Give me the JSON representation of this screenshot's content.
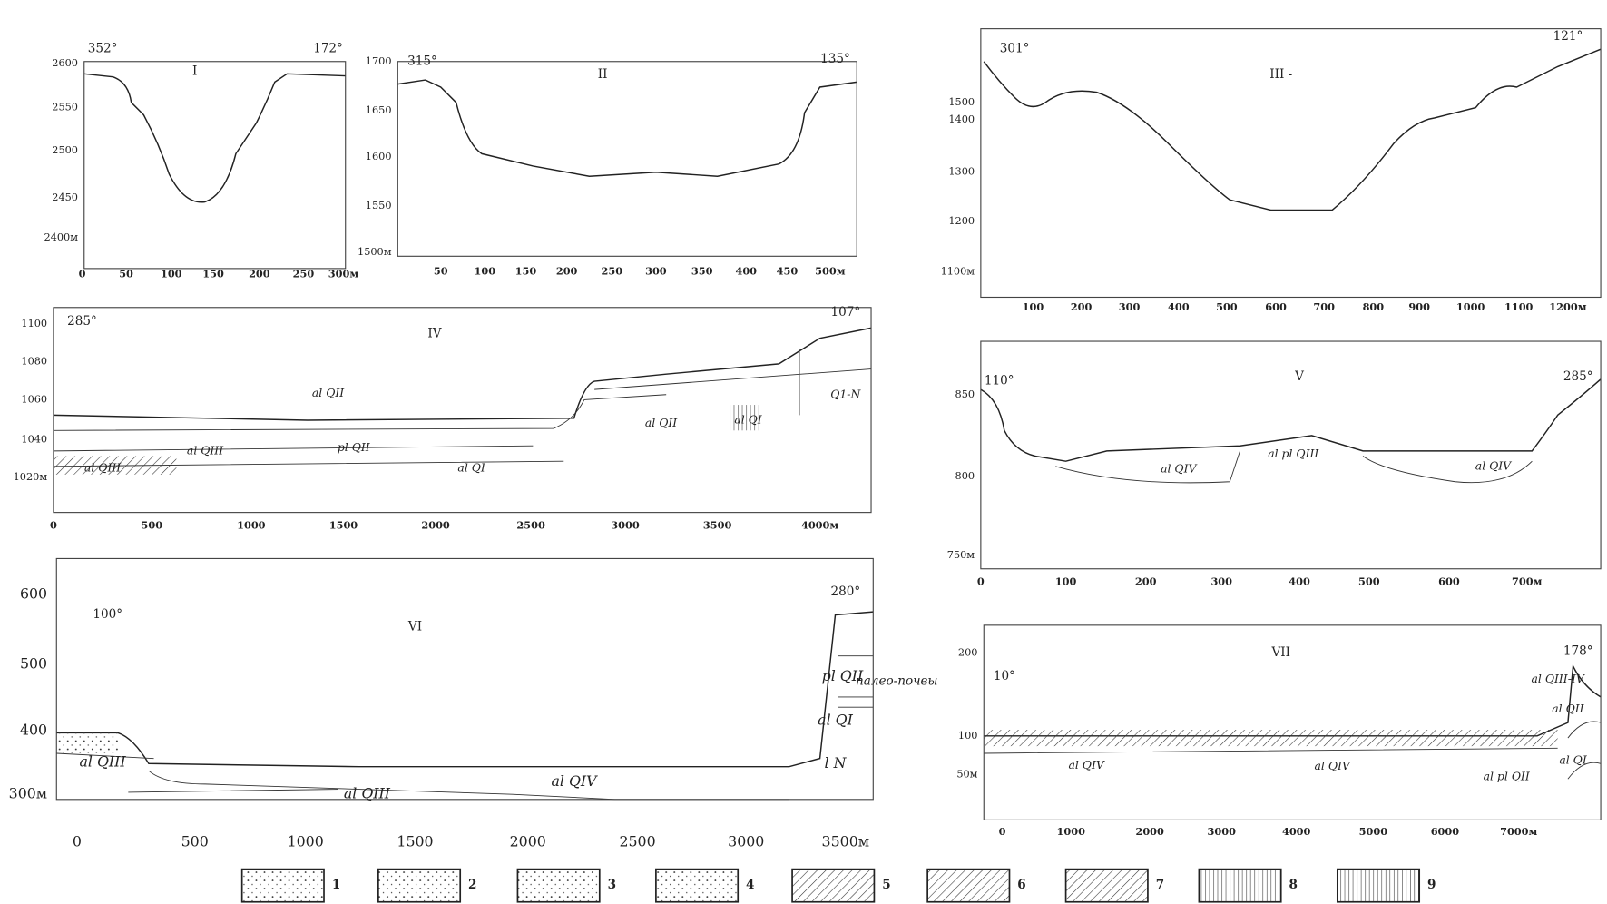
{
  "panels": [
    {
      "label": "I",
      "azimuth_left": "352°",
      "azimuth_right": "172°",
      "yticks": [
        "2600",
        "2550",
        "2500",
        "2450",
        "2400м"
      ],
      "xticks": [
        "0",
        "50",
        "100",
        "150",
        "200",
        "250",
        "300м"
      ],
      "units": []
    },
    {
      "label": "II",
      "azimuth_left": "315°",
      "azimuth_right": "135°",
      "yticks": [
        "1700",
        "1650",
        "1600",
        "1550",
        "1500м"
      ],
      "xticks": [
        "50",
        "100",
        "150",
        "200",
        "250",
        "300",
        "350",
        "400",
        "450",
        "500м"
      ],
      "units": []
    },
    {
      "label": "III -",
      "azimuth_left": "301°",
      "azimuth_right": "121°",
      "yticks": [
        "1500",
        "1400",
        "1300",
        "1200",
        "1100м"
      ],
      "xticks": [
        "100",
        "200",
        "300",
        "400",
        "500",
        "600",
        "700",
        "800",
        "900",
        "1000",
        "1100",
        "1200м"
      ],
      "units": []
    },
    {
      "label": "IV",
      "azimuth_left": "285°",
      "azimuth_right": "107°",
      "yticks": [
        "1100",
        "1080",
        "1060",
        "1040",
        "1020м"
      ],
      "xticks": [
        "0",
        "500",
        "1000",
        "1500",
        "2000",
        "2500",
        "3000",
        "3500",
        "4000м"
      ],
      "units": [
        "al QII",
        "al QII",
        "al QIII",
        "al QIII",
        "pl QII",
        "al QI",
        "al QI",
        "Q1-N"
      ]
    },
    {
      "label": "V",
      "azimuth_left": "110°",
      "azimuth_right": "285°",
      "yticks": [
        "850",
        "800",
        "750м"
      ],
      "xticks": [
        "0",
        "100",
        "200",
        "300",
        "400",
        "500",
        "600",
        "700м"
      ],
      "units": [
        "al QIV",
        "al pl QIII",
        "al QIV"
      ]
    },
    {
      "label": "VI",
      "azimuth_left": "100°",
      "azimuth_right": "280°",
      "yticks": [
        "600",
        "500",
        "400",
        "300м"
      ],
      "xticks": [
        "0",
        "500",
        "1000",
        "1500",
        "2000",
        "2500",
        "3000",
        "3500м"
      ],
      "units": [
        "pl QII",
        "al QI",
        "al QIII",
        "al QIII",
        "al QIV",
        "l N"
      ],
      "note": "палео-почвы"
    },
    {
      "label": "VII",
      "azimuth_left": "10°",
      "azimuth_right": "178°",
      "yticks": [
        "200",
        "100",
        "50м"
      ],
      "xticks": [
        "0",
        "1000",
        "2000",
        "3000",
        "4000",
        "5000",
        "6000",
        "7000м"
      ],
      "units": [
        "al QIII-IV",
        "al QII",
        "al QI",
        "al QIV",
        "al QIV",
        "al pl QII"
      ]
    }
  ],
  "legend": [
    "1",
    "2",
    "3",
    "4",
    "5",
    "6",
    "7",
    "8",
    "9"
  ]
}
